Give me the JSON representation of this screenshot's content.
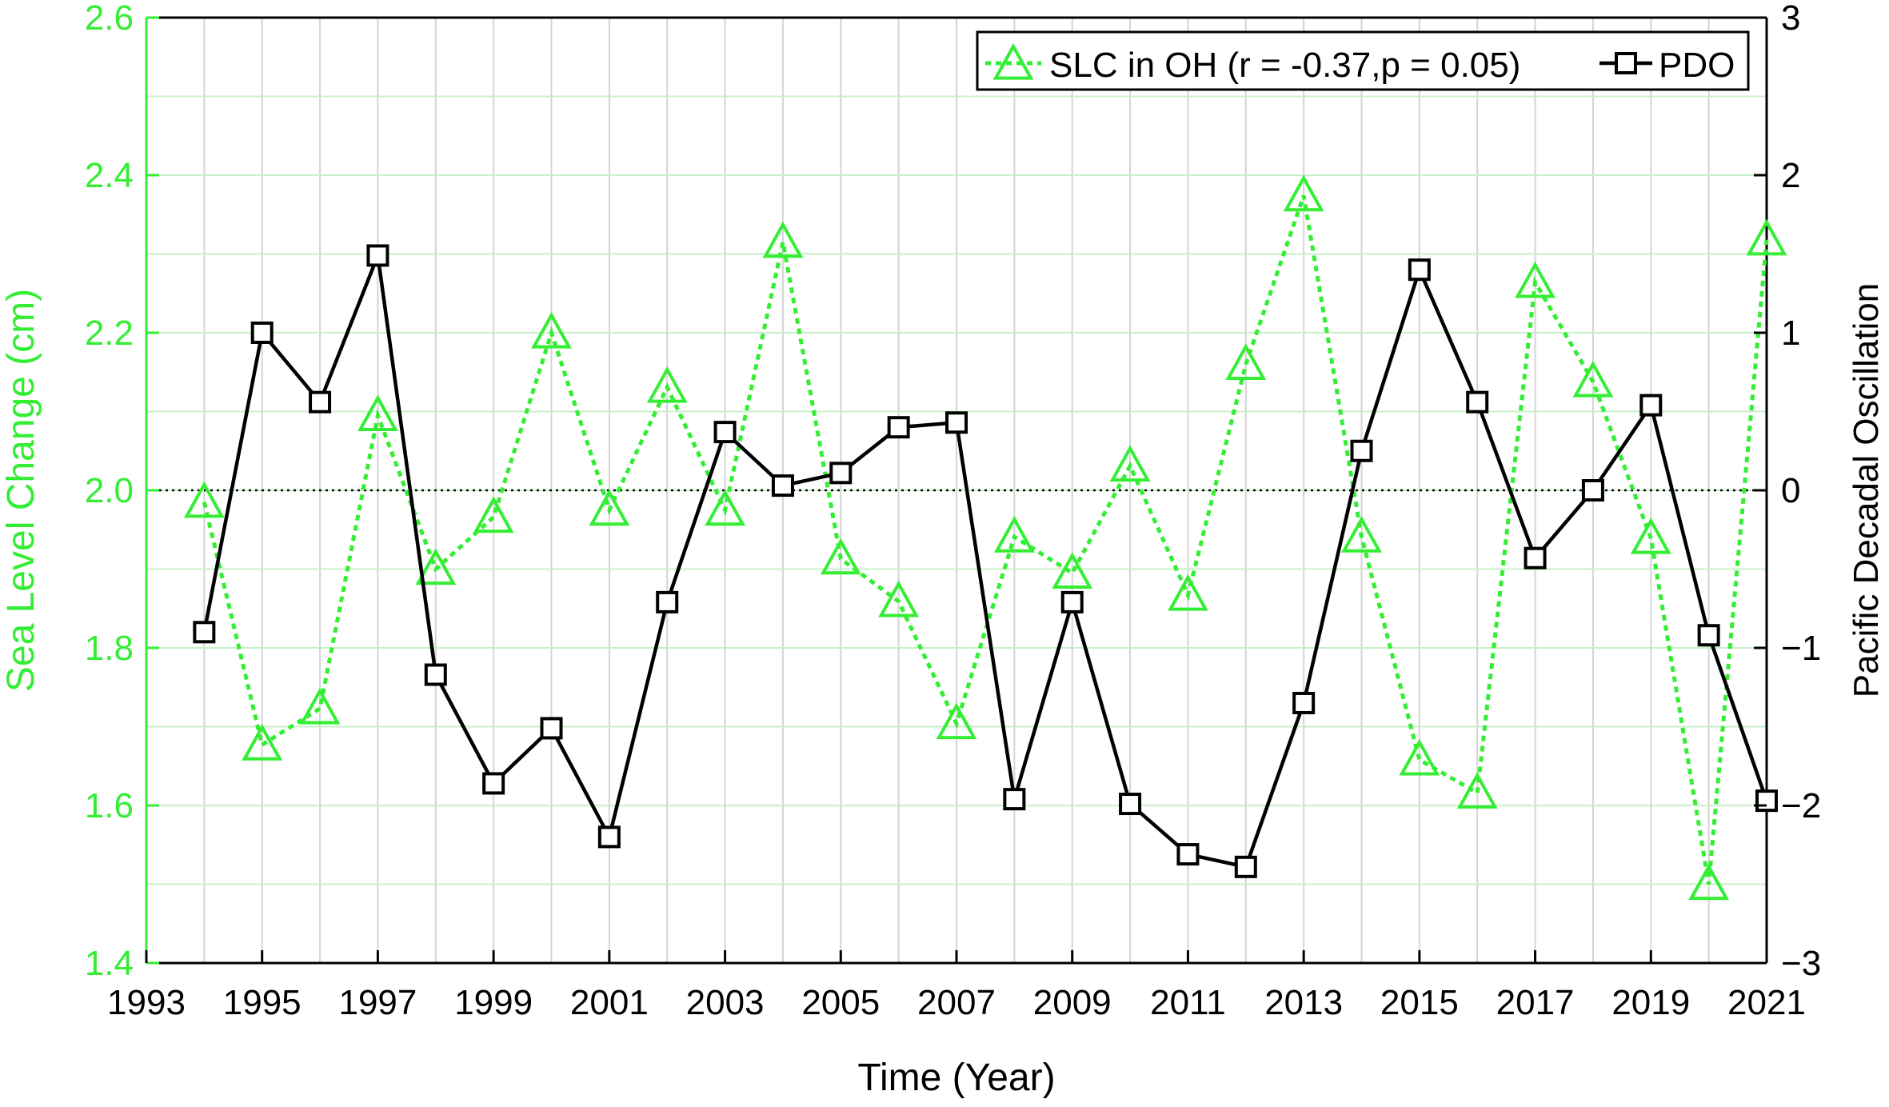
{
  "chart_data": {
    "type": "line",
    "title": "",
    "xlabel": "Time (Year)",
    "ylabel_left": "Sea Level Change (cm)",
    "ylabel_right": "Pacific Decadal Oscillation",
    "xlim": [
      1993,
      2021
    ],
    "ylim_left": [
      1.4,
      2.6
    ],
    "ylim_right": [
      -3,
      3
    ],
    "x_ticks": [
      1993,
      1995,
      1997,
      1999,
      2001,
      2003,
      2005,
      2007,
      2009,
      2011,
      2013,
      2015,
      2017,
      2019,
      2021
    ],
    "y_ticks_left": [
      "1.4",
      "1.6",
      "1.8",
      "2.0",
      "2.2",
      "2.4",
      "2.6"
    ],
    "y_ticks_right": [
      "-3",
      "-2",
      "-1",
      "0",
      "1",
      "2",
      "3"
    ],
    "grid": true,
    "reference_line_left": 2.0,
    "legend_position": "top-right",
    "colors": {
      "left_axis": "#33ee33",
      "slc": "#33ee33",
      "pdo": "#000000",
      "grid_vertical": "#d4d4d4",
      "grid_horizontal": "#c8f0c8"
    },
    "x": [
      1994,
      1995,
      1996,
      1997,
      1998,
      1999,
      2000,
      2001,
      2002,
      2003,
      2004,
      2005,
      2006,
      2007,
      2008,
      2009,
      2010,
      2011,
      2012,
      2013,
      2014,
      2015,
      2016,
      2017,
      2018,
      2019,
      2020,
      2021
    ],
    "series": [
      {
        "name": "SLC in OH (r = -0.37,p = 0.05)",
        "axis": "left",
        "line_style": "dotted",
        "marker": "triangle",
        "values": [
          1.985,
          1.677,
          1.723,
          2.095,
          1.9,
          1.966,
          2.2,
          1.975,
          2.131,
          1.975,
          2.315,
          1.913,
          1.859,
          1.704,
          1.941,
          1.895,
          2.031,
          1.867,
          2.16,
          2.374,
          1.941,
          1.658,
          1.616,
          2.264,
          2.138,
          1.939,
          1.5,
          2.318
        ]
      },
      {
        "name": "PDO",
        "axis": "right",
        "line_style": "solid",
        "marker": "square",
        "values": [
          -0.9,
          1.0,
          0.56,
          1.49,
          -1.17,
          -1.86,
          -1.51,
          -2.2,
          -0.71,
          0.37,
          0.03,
          0.11,
          0.4,
          0.43,
          -1.96,
          -0.71,
          -1.99,
          -2.31,
          -2.39,
          -1.35,
          0.25,
          1.4,
          0.56,
          -0.43,
          0.0,
          0.54,
          -0.92,
          -1.97
        ]
      }
    ]
  }
}
